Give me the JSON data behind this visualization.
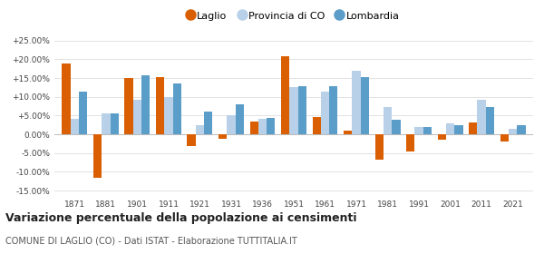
{
  "years": [
    1871,
    1881,
    1901,
    1911,
    1921,
    1931,
    1936,
    1951,
    1961,
    1971,
    1981,
    1991,
    2001,
    2011,
    2021
  ],
  "laglio": [
    18.8,
    -11.5,
    15.0,
    15.2,
    -3.2,
    -1.2,
    3.5,
    20.8,
    4.5,
    1.0,
    -6.8,
    -4.5,
    -1.5,
    3.2,
    -2.0
  ],
  "provincia_co": [
    4.2,
    5.6,
    9.2,
    10.0,
    2.5,
    5.0,
    4.2,
    12.5,
    11.5,
    17.0,
    7.2,
    2.0,
    3.0,
    9.2,
    1.5
  ],
  "lombardia": [
    11.5,
    5.6,
    15.8,
    13.5,
    6.0,
    8.0,
    4.4,
    12.8,
    12.8,
    15.3,
    4.0,
    2.0,
    2.5,
    7.2,
    2.5
  ],
  "color_laglio": "#d95f02",
  "color_provincia": "#b8d0e8",
  "color_lombardia": "#5b9dc9",
  "title": "Variazione percentuale della popolazione ai censimenti",
  "subtitle": "COMUNE DI LAGLIO (CO) - Dati ISTAT - Elaborazione TUTTITALIA.IT",
  "ytick_labels": [
    "-15.00%",
    "-10.00%",
    "-5.00%",
    "0.00%",
    "+5.00%",
    "+10.00%",
    "+15.00%",
    "+20.00%",
    "+25.00%"
  ],
  "ytick_vals": [
    -15,
    -10,
    -5,
    0,
    5,
    10,
    15,
    20,
    25
  ],
  "ylim": [
    -17,
    27
  ],
  "background": "#ffffff",
  "bar_width": 0.27,
  "legend_labels": [
    "Laglio",
    "Provincia di CO",
    "Lombardia"
  ]
}
